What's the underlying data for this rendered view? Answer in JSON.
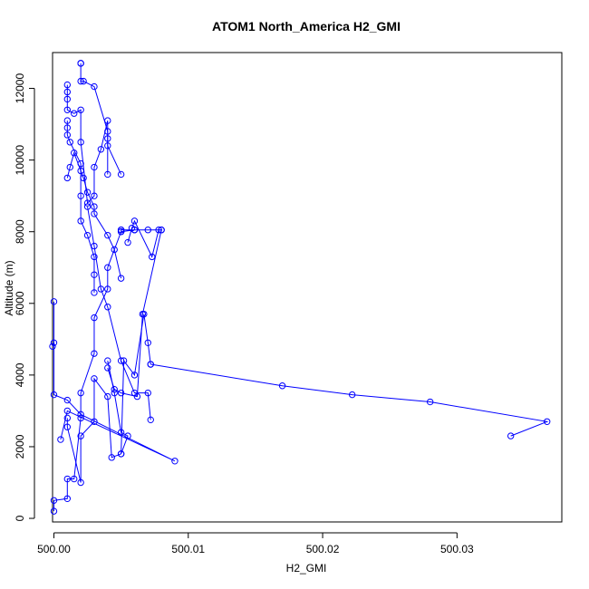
{
  "chart_data": {
    "type": "line",
    "title": "ATOM1 North_America H2_GMI",
    "xlabel": "H2_GMI",
    "ylabel": "Altitude (m)",
    "xlim": [
      499.9999,
      500.0378
    ],
    "ylim": [
      -100,
      13000
    ],
    "x_ticks": [
      500.0,
      500.01,
      500.02,
      500.03
    ],
    "x_tick_labels": [
      "500.00",
      "500.01",
      "500.02",
      "500.03"
    ],
    "y_ticks": [
      0,
      2000,
      4000,
      6000,
      8000,
      10000,
      12000
    ],
    "y_tick_labels": [
      "0",
      "2000",
      "4000",
      "6000",
      "8000",
      "10000",
      "12000"
    ],
    "grid": false,
    "legend": "none",
    "series_color": "#0000ff",
    "marker": "open-circle",
    "series": [
      {
        "x": [
          500.0,
          500.0,
          500.001,
          500.001,
          500.0015,
          500.002,
          500.002,
          500.003,
          500.003,
          500.004,
          500.004,
          500.005,
          500.005,
          500.006,
          500.007,
          500.008,
          500.006,
          500.005,
          500.005
        ],
        "y": [
          200,
          500,
          550,
          1100,
          1100,
          2800,
          3500,
          4600,
          5600,
          6400,
          7000,
          8000,
          8050,
          8050,
          8050,
          8050,
          8050,
          8000,
          8050
        ]
      },
      {
        "x": [
          500.005,
          500.004,
          500.004,
          500.0035,
          500.003,
          500.003,
          500.0025,
          500.002,
          500.002,
          500.0015,
          500.001,
          500.001,
          500.001,
          500.001
        ],
        "y": [
          9600,
          10400,
          11100,
          10300,
          9800,
          9000,
          8800,
          10500,
          11400,
          11300,
          11400,
          11700,
          11900,
          12100
        ]
      },
      {
        "x": [
          500.002,
          500.002,
          500.002,
          500.0022,
          500.003,
          500.004,
          500.004,
          500.004
        ],
        "y": [
          12700,
          12700,
          12200,
          12200,
          12050,
          10800,
          10600,
          9600
        ]
      },
      {
        "x": [
          500.001,
          500.001,
          500.001,
          500.0012,
          500.002,
          500.002,
          500.002,
          500.0025,
          500.003,
          500.003,
          500.003
        ],
        "y": [
          11100,
          10900,
          10700,
          10500,
          9900,
          9000,
          8300,
          7900,
          7300,
          6800,
          6300
        ]
      },
      {
        "x": [
          500.004,
          500.0045,
          500.005,
          500.0055,
          500.005,
          500.0052,
          500.006,
          500.0067,
          500.007,
          500.0072
        ],
        "y": [
          4400,
          3500,
          2400,
          2300,
          1800,
          4400,
          4000,
          5700,
          4900,
          4300
        ]
      },
      {
        "x": [
          500.0072,
          500.017,
          500.0222,
          500.028,
          500.0367,
          500.034
        ],
        "y": [
          4300,
          3700,
          3450,
          3250,
          2700,
          2300
        ]
      },
      {
        "x": [
          499.9999,
          500.0,
          500.0,
          500.0,
          500.001,
          500.002,
          500.009,
          500.001,
          500.0005
        ],
        "y": [
          4800,
          4900,
          6050,
          3450,
          3300,
          2900,
          1600,
          3000,
          2200
        ]
      },
      {
        "x": [
          500.001,
          500.001,
          500.002,
          500.002,
          500.003,
          500.003,
          500.004,
          500.0043,
          500.005
        ],
        "y": [
          2800,
          2550,
          1000,
          2300,
          2700,
          3900,
          3400,
          1700,
          1800
        ]
      },
      {
        "x": [
          500.0055,
          500.0058,
          500.006,
          500.0073,
          500.0078,
          500.008,
          500.0066,
          500.0062,
          500.005,
          500.0045,
          500.004
        ],
        "y": [
          7700,
          8100,
          8300,
          7300,
          8050,
          8050,
          5700,
          3400,
          3500,
          3600,
          4200
        ]
      },
      {
        "x": [
          500.0072,
          500.007,
          500.006,
          500.005,
          500.004,
          500.0035,
          500.003,
          500.0025
        ],
        "y": [
          2750,
          3500,
          3500,
          4400,
          5900,
          6400,
          7600,
          8700
        ]
      },
      {
        "x": [
          500.001,
          500.0012,
          500.0015,
          500.002,
          500.0022,
          500.0025,
          500.003,
          500.003,
          500.004,
          500.0045,
          500.005
        ],
        "y": [
          9500,
          9800,
          10200,
          9700,
          9500,
          9100,
          8700,
          8500,
          7900,
          7500,
          6700
        ]
      }
    ]
  }
}
